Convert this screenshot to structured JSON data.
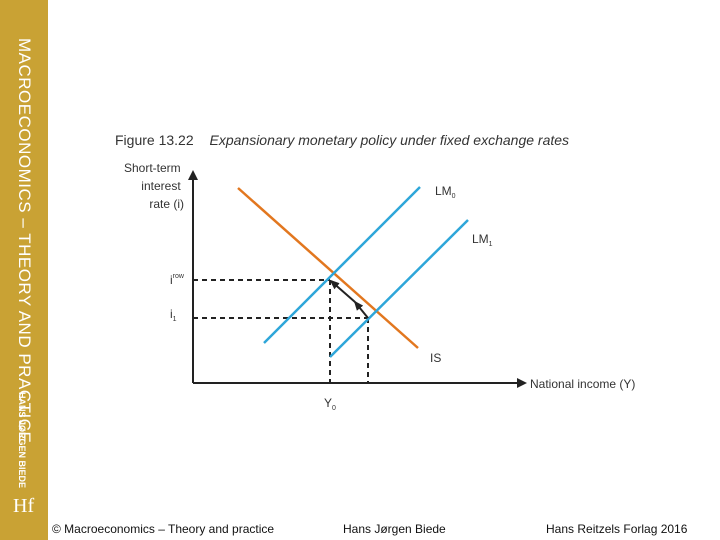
{
  "sidebar": {
    "title": "MACROECONOMICS – THEORY AND PRACTICE",
    "author": "HANS JØRGEN BIEDE",
    "logo": "Hf"
  },
  "figure": {
    "number": "Figure 13.22",
    "caption": "Expansionary monetary policy under fixed exchange rates"
  },
  "diagram": {
    "y_axis_label": [
      "Short-term",
      "interest",
      "rate (i)"
    ],
    "x_axis_label": "National income (Y)",
    "curves": {
      "LM0": {
        "base": "LM",
        "sub": "0",
        "color": "#2ea6d9"
      },
      "LM1": {
        "base": "LM",
        "sub": "1",
        "color": "#2ea6d9"
      },
      "IS": {
        "base": "IS",
        "color": "#e2771f"
      }
    },
    "ticks": {
      "i_row": {
        "base": "i",
        "sup": "row"
      },
      "i1": {
        "base": "i",
        "sub": "1"
      },
      "Y0": {
        "base": "Y",
        "sub": "0"
      }
    }
  },
  "footer": {
    "copyright": "© Macroeconomics – Theory and practice",
    "author": "Hans Jørgen Biede",
    "publisher": "Hans Reitzels Forlag 2016"
  }
}
